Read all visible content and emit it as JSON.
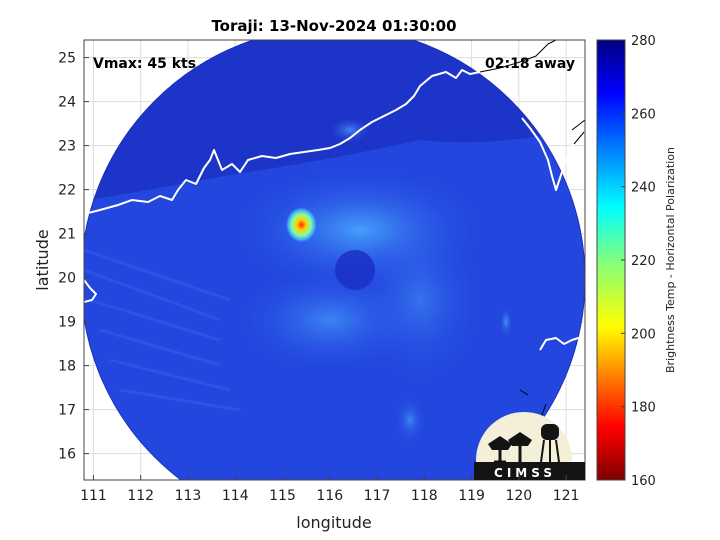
{
  "chart_data": {
    "type": "heatmap",
    "title": "Toraji: 13-Nov-2024 01:30:00",
    "xlabel": "longitude",
    "ylabel": "latitude",
    "xlim": [
      110.8,
      121.4
    ],
    "ylim": [
      15.4,
      25.4
    ],
    "x_ticks": [
      "111",
      "112",
      "113",
      "114",
      "115",
      "116",
      "117",
      "118",
      "119",
      "120",
      "121"
    ],
    "y_ticks": [
      "16",
      "17",
      "18",
      "19",
      "20",
      "21",
      "22",
      "23",
      "24",
      "25"
    ],
    "grid": true,
    "storm_center": {
      "lon": 116.0,
      "lat": 20.1
    },
    "min_bt_location": {
      "lon": 115.4,
      "lat": 21.2
    },
    "colorbar": {
      "label": "Brightness Temp - Horizontal Polarization",
      "range": [
        160,
        280
      ],
      "ticks": [
        "280",
        "260",
        "240",
        "220",
        "200",
        "180",
        "160"
      ],
      "colormap": "jet"
    },
    "annotations": {
      "vmax": "Vmax: 45 kts",
      "time_offset": "02:18 away"
    },
    "logo_text": "CIMSS"
  },
  "colors": {
    "background_bt": "#1f3fd8",
    "land_bt": "#2745e0",
    "coast": "#ffffff",
    "coast_outside": "#000000"
  }
}
